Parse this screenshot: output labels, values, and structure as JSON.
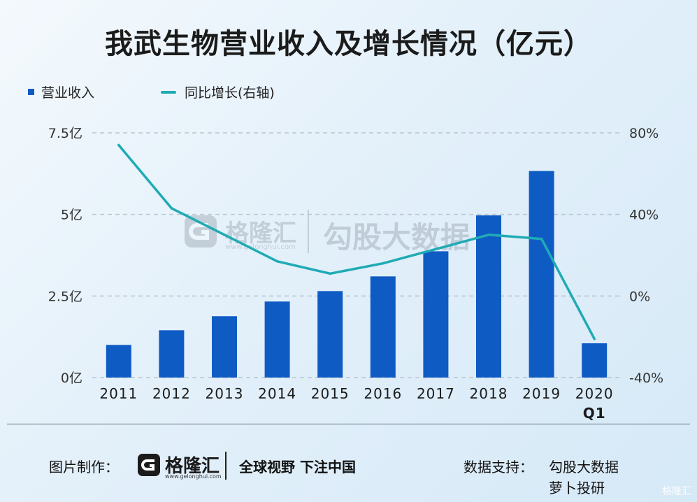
{
  "title": "我武生物营业收入及增长情况（亿元）",
  "colors": {
    "bar": "#0f5bc4",
    "line": "#1fabb5",
    "grid": "#b8c4cf",
    "axis_text": "#333333"
  },
  "legend": {
    "revenue_label": "营业收入",
    "growth_label": "同比增长(右轴)"
  },
  "chart_data": {
    "type": "bar",
    "categories": [
      "2011",
      "2012",
      "2013",
      "2014",
      "2015",
      "2016",
      "2017",
      "2018",
      "2019",
      "2020\nQ1"
    ],
    "series": [
      {
        "name": "营业收入",
        "type": "bar",
        "axis": "left",
        "values": [
          1.0,
          1.45,
          1.88,
          2.33,
          2.65,
          3.1,
          3.87,
          4.97,
          6.33,
          1.05
        ]
      },
      {
        "name": "同比增长(右轴)",
        "type": "line",
        "axis": "right",
        "values": [
          74,
          43,
          30,
          17,
          11,
          16,
          23,
          30,
          28,
          -21
        ]
      }
    ],
    "y_left": {
      "lim": [
        0,
        7.5
      ],
      "ticks": [
        0,
        2.5,
        5,
        7.5
      ],
      "tick_labels": [
        "0亿",
        "2.5亿",
        "5亿",
        "7.5亿"
      ]
    },
    "y_right": {
      "lim": [
        -40,
        80
      ],
      "ticks": [
        -40,
        0,
        40,
        80
      ],
      "tick_labels": [
        "-40%",
        "0%",
        "40%",
        "80%"
      ]
    },
    "grid": true,
    "legend_position": "top-left"
  },
  "watermark": {
    "brand": "格隆汇",
    "url": "www.gelonghui.com",
    "text": "勾股大数据"
  },
  "footer": {
    "credit_label": "图片制作：",
    "brand_name": "格隆汇",
    "brand_url": "www.gelonghui.com",
    "slogan": "全球视野 下注中国",
    "support_label": "数据支持：",
    "support_source_1": "勾股大数据",
    "support_source_2": "萝卜投研"
  },
  "corner_brand": "格隆汇"
}
